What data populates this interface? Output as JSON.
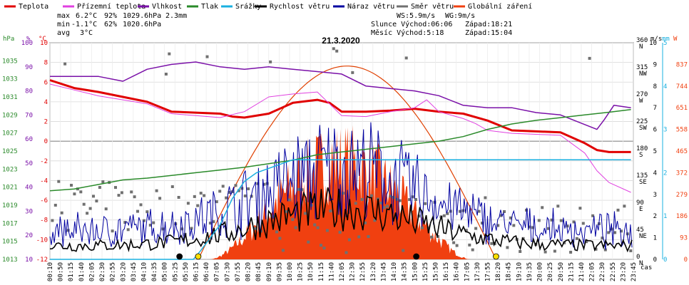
{
  "colors": {
    "temp": "#e00000",
    "dew": "#e040e0",
    "hum": "#7a10a8",
    "press": "#2a8a2a",
    "rain": "#1ab0e0",
    "wind": "#000000",
    "gust": "#0000a0",
    "dir": "#707070",
    "solar": "#f04010",
    "sunline": "#e04000"
  },
  "legend": [
    {
      "key": "temp",
      "label": "Teplota"
    },
    {
      "key": "dew",
      "label": "Přízemní teplota"
    },
    {
      "key": "hum",
      "label": "Vlhkost"
    },
    {
      "key": "press",
      "label": "Tlak"
    },
    {
      "key": "rain",
      "label": "Srážky"
    },
    {
      "key": "wind",
      "label": "Rychlost větru"
    },
    {
      "key": "gust",
      "label": "Náraz větru"
    },
    {
      "key": "dir",
      "label": "Směr větru"
    },
    {
      "key": "solar",
      "label": "Globální záření"
    }
  ],
  "stats": {
    "max_label": "max",
    "max_temp": "6.2°C",
    "max_hum": "92%",
    "max_press": "1029.6hPa",
    "rain_total": "2.3mm",
    "min_label": "min",
    "min_temp": "-1.1°C",
    "min_hum": "62%",
    "min_press": "1020.6hPa",
    "avg_label": "avg",
    "avg_temp": "3°C",
    "ws": "WS:5.9m/s",
    "wg": "WG:9m/s",
    "sun": "Slunce Východ:06:06",
    "sun_set": "Západ:18:21",
    "moon": "Měsíc Východ:5:18",
    "moon_set": "Západ:15:04"
  },
  "chart_data": {
    "type": "line",
    "title": "21.3.2020",
    "xlabel": "čas",
    "x_ticks": [
      "00:10",
      "00:50",
      "01:15",
      "01:40",
      "02:05",
      "02:30",
      "02:55",
      "03:20",
      "03:45",
      "04:10",
      "04:35",
      "05:00",
      "05:25",
      "05:50",
      "06:15",
      "06:40",
      "07:05",
      "07:30",
      "07:55",
      "08:20",
      "08:45",
      "09:10",
      "09:35",
      "10:00",
      "10:25",
      "10:50",
      "11:15",
      "11:40",
      "12:05",
      "12:30",
      "12:55",
      "13:20",
      "13:45",
      "14:10",
      "14:35",
      "15:00",
      "15:25",
      "15:50",
      "16:15",
      "16:40",
      "17:05",
      "17:30",
      "17:55",
      "18:20",
      "18:45",
      "19:10",
      "19:35",
      "20:00",
      "20:25",
      "20:50",
      "21:15",
      "21:40",
      "22:05",
      "22:30",
      "22:55",
      "23:20",
      "23:45"
    ],
    "axes": {
      "press": {
        "unit": "hPa",
        "min": 1013,
        "max": 1037,
        "ticks": [
          1013,
          1015,
          1017,
          1019,
          1021,
          1023,
          1025,
          1027,
          1029,
          1031,
          1033,
          1035
        ]
      },
      "hum": {
        "unit": "%",
        "min": 10,
        "max": 100,
        "ticks": [
          10,
          20,
          30,
          40,
          50,
          60,
          70,
          80,
          90,
          100
        ]
      },
      "temp": {
        "unit": "°C",
        "min": -12,
        "max": 10,
        "ticks": [
          -12,
          -10,
          -8,
          -6,
          -4,
          -2,
          0,
          2,
          4,
          6,
          8,
          10
        ]
      },
      "dir": {
        "min": 0,
        "max": 360,
        "ticks": [
          {
            "v": 0,
            "t": "0 N"
          },
          {
            "v": 45,
            "t": "45 NE"
          },
          {
            "v": 90,
            "t": "90 E"
          },
          {
            "v": 135,
            "t": "135 SE"
          },
          {
            "v": 180,
            "t": "180 S"
          },
          {
            "v": 225,
            "t": "225 SW"
          },
          {
            "v": 270,
            "t": "270 W"
          },
          {
            "v": 315,
            "t": "315 NW"
          },
          {
            "v": 360,
            "t": "360 N"
          }
        ]
      },
      "wind": {
        "unit": "m/s",
        "min": 0,
        "max": 10,
        "ticks": [
          0,
          1,
          2,
          3,
          4,
          5,
          6,
          7,
          8,
          9,
          10
        ]
      },
      "rain": {
        "unit": "mm",
        "min": 0,
        "max": 5,
        "ticks": [
          0,
          1,
          2,
          3,
          4,
          5
        ]
      },
      "solar": {
        "unit": "W",
        "min": 0,
        "max": 930,
        "ticks": [
          0,
          93,
          186,
          279,
          372,
          465,
          558,
          651,
          744,
          837
        ]
      }
    },
    "series": [
      {
        "key": "temp",
        "name": "Teplota",
        "width": 3,
        "points": [
          [
            0,
            6.2
          ],
          [
            1,
            5.4
          ],
          [
            2,
            5.0
          ],
          [
            3,
            4.5
          ],
          [
            4,
            4.0
          ],
          [
            5,
            3.0
          ],
          [
            6,
            2.9
          ],
          [
            7,
            2.8
          ],
          [
            7.5,
            2.5
          ],
          [
            8,
            2.4
          ],
          [
            9,
            2.8
          ],
          [
            10,
            3.9
          ],
          [
            11,
            4.2
          ],
          [
            11.5,
            3.9
          ],
          [
            12,
            3.0
          ],
          [
            13,
            3.0
          ],
          [
            14,
            3.1
          ],
          [
            15,
            3.3
          ],
          [
            16,
            3.0
          ],
          [
            17,
            2.8
          ],
          [
            18,
            2.1
          ],
          [
            19,
            1.1
          ],
          [
            20,
            1.0
          ],
          [
            21,
            0.9
          ],
          [
            22,
            -0.2
          ],
          [
            22.5,
            -0.9
          ],
          [
            23,
            -1.1
          ],
          [
            23.9,
            -1.1
          ]
        ]
      },
      {
        "key": "dew",
        "name": "Přízemní teplota",
        "width": 1,
        "points": [
          [
            0,
            5.8
          ],
          [
            1,
            5.2
          ],
          [
            2,
            4.6
          ],
          [
            3,
            4.2
          ],
          [
            4,
            3.8
          ],
          [
            5,
            2.8
          ],
          [
            6,
            2.6
          ],
          [
            7,
            2.4
          ],
          [
            8,
            3.0
          ],
          [
            9,
            4.5
          ],
          [
            10,
            4.8
          ],
          [
            11,
            5.0
          ],
          [
            12,
            2.6
          ],
          [
            13,
            2.5
          ],
          [
            14,
            3.0
          ],
          [
            15,
            3.4
          ],
          [
            15.5,
            4.2
          ],
          [
            16,
            3.0
          ],
          [
            17,
            2.3
          ],
          [
            17.5,
            1.8
          ],
          [
            18,
            1.1
          ],
          [
            19,
            0.8
          ],
          [
            20,
            0.7
          ],
          [
            21,
            0.6
          ],
          [
            22,
            -1.2
          ],
          [
            22.5,
            -3.0
          ],
          [
            23,
            -4.2
          ],
          [
            23.9,
            -5.2
          ]
        ]
      },
      {
        "key": "hum",
        "name": "Vlhkost",
        "width": 1.5,
        "points": [
          [
            0,
            86
          ],
          [
            1,
            86
          ],
          [
            2,
            86
          ],
          [
            3,
            84
          ],
          [
            4,
            89
          ],
          [
            5,
            91
          ],
          [
            6,
            92
          ],
          [
            7,
            90
          ],
          [
            8,
            89
          ],
          [
            9,
            90
          ],
          [
            10,
            89
          ],
          [
            11,
            88
          ],
          [
            12,
            87
          ],
          [
            13,
            82
          ],
          [
            14,
            81
          ],
          [
            15,
            80
          ],
          [
            16,
            78
          ],
          [
            17,
            74
          ],
          [
            18,
            73
          ],
          [
            19,
            73
          ],
          [
            20,
            71
          ],
          [
            21,
            70
          ],
          [
            22,
            66
          ],
          [
            22.5,
            64
          ],
          [
            22.8,
            68
          ],
          [
            23.2,
            74
          ],
          [
            23.9,
            73
          ]
        ]
      },
      {
        "key": "press",
        "name": "Tlak",
        "width": 1.5,
        "points": [
          [
            0,
            1020.6
          ],
          [
            1,
            1020.8
          ],
          [
            2,
            1021.3
          ],
          [
            3,
            1021.8
          ],
          [
            4,
            1022.0
          ],
          [
            5,
            1022.3
          ],
          [
            6,
            1022.6
          ],
          [
            7,
            1022.9
          ],
          [
            8,
            1023.2
          ],
          [
            9,
            1023.6
          ],
          [
            10,
            1024.0
          ],
          [
            11,
            1024.6
          ],
          [
            12,
            1024.9
          ],
          [
            13,
            1025.2
          ],
          [
            14,
            1025.5
          ],
          [
            15,
            1025.8
          ],
          [
            16,
            1026.1
          ],
          [
            17,
            1026.6
          ],
          [
            18,
            1027.4
          ],
          [
            19,
            1028.0
          ],
          [
            20,
            1028.4
          ],
          [
            21,
            1028.7
          ],
          [
            22,
            1029.0
          ],
          [
            23,
            1029.3
          ],
          [
            23.9,
            1029.6
          ]
        ]
      },
      {
        "key": "rain",
        "name": "Srážky",
        "width": 1.5,
        "points": [
          [
            0,
            0
          ],
          [
            5.9,
            0
          ],
          [
            6.2,
            0.2
          ],
          [
            6.6,
            0.5
          ],
          [
            7.0,
            0.8
          ],
          [
            7.5,
            1.4
          ],
          [
            8.0,
            1.8
          ],
          [
            8.5,
            2.0
          ],
          [
            9.0,
            2.1
          ],
          [
            9.5,
            2.2
          ],
          [
            10.0,
            2.3
          ],
          [
            23.9,
            2.3
          ]
        ]
      }
    ],
    "markers": [
      {
        "h": 5.33,
        "color": "#000000"
      },
      {
        "h": 6.1,
        "color": "#ffe000"
      },
      {
        "h": 15.07,
        "color": "#000000"
      },
      {
        "h": 18.35,
        "color": "#ffe000"
      }
    ]
  }
}
